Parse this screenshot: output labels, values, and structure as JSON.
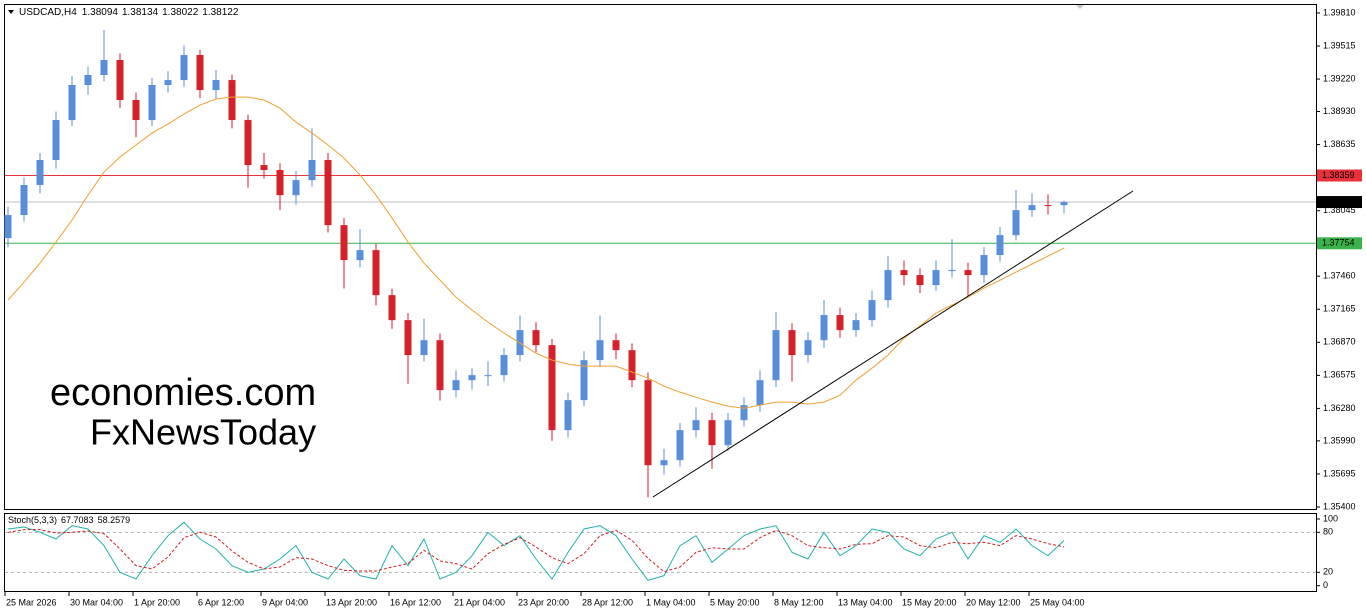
{
  "header": {
    "symbol": "USDCAD,H4",
    "indicator": "Stoch(5,3,3)"
  },
  "watermark": {
    "brand": "economies.com",
    "sub": "FxNewsToday"
  },
  "chart_data": [
    {
      "type": "candlestick",
      "categories": [
        "25 Mar 2026",
        null,
        null,
        null,
        "30 Mar 04:00",
        null,
        null,
        null,
        "1 Apr 20:00",
        null,
        null,
        null,
        "6 Apr 12:00",
        null,
        null,
        null,
        "9 Apr 04:00",
        null,
        null,
        null,
        "13 Apr 20:00",
        null,
        null,
        null,
        "16 Apr 12:00",
        null,
        null,
        null,
        "21 Apr 04:00",
        null,
        null,
        null,
        "23 Apr 20:00",
        null,
        null,
        null,
        "28 Apr 12:00",
        null,
        null,
        null,
        "1 May 04:00",
        null,
        null,
        null,
        "5 May 20:00",
        null,
        null,
        null,
        "8 May 12:00",
        null,
        null,
        null,
        "13 May 04:00",
        null,
        null,
        null,
        "15 May 20:00",
        null,
        null,
        null,
        "20 May 12:00",
        null,
        null,
        null,
        "25 May 04:00",
        null,
        null
      ],
      "open": [
        1.378,
        1.38006,
        1.38274,
        1.38497,
        1.38854,
        1.39167,
        1.39256,
        1.3939,
        1.39033,
        1.38854,
        1.39167,
        1.39211,
        1.39435,
        1.39122,
        1.39211,
        1.38854,
        1.38452,
        1.38408,
        1.38184,
        1.38318,
        1.38497,
        1.37916,
        1.37604,
        1.37693,
        1.37291,
        1.37068,
        1.36756,
        1.36889,
        1.36443,
        1.36532,
        1.36577,
        1.36577,
        1.36756,
        1.36979,
        1.36845,
        1.36086,
        1.36354,
        1.36711,
        1.36889,
        1.368,
        1.36532,
        1.35773,
        1.35818,
        1.36086,
        1.36175,
        1.35952,
        1.36175,
        1.36309,
        1.36532,
        1.36979,
        1.36756,
        1.36889,
        1.37113,
        1.36979,
        1.37068,
        1.37247,
        1.37515,
        1.3747,
        1.37381,
        1.37515,
        1.37515,
        1.3747,
        1.37649,
        1.37827,
        1.3805,
        1.38095,
        1.38094
      ],
      "high": [
        1.3808,
        1.3834,
        1.3856,
        1.3893,
        1.3925,
        1.3933,
        1.39658,
        1.3945,
        1.391,
        1.3923,
        1.3929,
        1.3952,
        1.3948,
        1.393,
        1.3926,
        1.389,
        1.3856,
        1.3847,
        1.384,
        1.3878,
        1.3856,
        1.3798,
        1.3788,
        1.3775,
        1.3735,
        1.3713,
        1.3708,
        1.3695,
        1.3662,
        1.3664,
        1.367,
        1.3682,
        1.3711,
        1.3705,
        1.369,
        1.3642,
        1.3679,
        1.3711,
        1.3695,
        1.3686,
        1.366,
        1.3592,
        1.3615,
        1.3629,
        1.3624,
        1.3624,
        1.3638,
        1.3662,
        1.3714,
        1.3704,
        1.3696,
        1.3725,
        1.3718,
        1.3713,
        1.3733,
        1.3764,
        1.376,
        1.3753,
        1.376,
        1.3779,
        1.3758,
        1.3772,
        1.379,
        1.3823,
        1.382,
        1.3819,
        1.38134
      ],
      "low": [
        1.3772,
        1.3795,
        1.382,
        1.3842,
        1.388,
        1.3908,
        1.392,
        1.3896,
        1.387,
        1.388,
        1.391,
        1.3915,
        1.3905,
        1.3904,
        1.3878,
        1.3825,
        1.3833,
        1.3805,
        1.381,
        1.3826,
        1.3785,
        1.3735,
        1.3754,
        1.372,
        1.3699,
        1.365,
        1.367,
        1.3635,
        1.3638,
        1.3645,
        1.3648,
        1.3652,
        1.367,
        1.3678,
        1.3599,
        1.3602,
        1.363,
        1.3665,
        1.3672,
        1.3647,
        1.35487,
        1.3569,
        1.3576,
        1.3602,
        1.3574,
        1.359,
        1.3612,
        1.3625,
        1.3647,
        1.3652,
        1.3669,
        1.3682,
        1.3691,
        1.3692,
        1.3701,
        1.3718,
        1.3738,
        1.3731,
        1.3733,
        1.3745,
        1.3728,
        1.374,
        1.3759,
        1.3778,
        1.3799,
        1.3801,
        1.38022
      ],
      "close": [
        1.38006,
        1.38274,
        1.38497,
        1.38854,
        1.39167,
        1.39256,
        1.3939,
        1.39033,
        1.38854,
        1.39167,
        1.39211,
        1.39435,
        1.39122,
        1.39211,
        1.38854,
        1.38452,
        1.38408,
        1.38184,
        1.38318,
        1.38497,
        1.37916,
        1.37604,
        1.37693,
        1.37291,
        1.37068,
        1.36756,
        1.36889,
        1.36443,
        1.36532,
        1.36577,
        1.36577,
        1.36756,
        1.36979,
        1.36845,
        1.36086,
        1.36354,
        1.36711,
        1.36889,
        1.368,
        1.36532,
        1.35773,
        1.35818,
        1.36086,
        1.36175,
        1.35952,
        1.36175,
        1.36309,
        1.36532,
        1.36979,
        1.36756,
        1.36889,
        1.37113,
        1.36979,
        1.37068,
        1.37247,
        1.37515,
        1.3747,
        1.37381,
        1.37515,
        1.37515,
        1.3747,
        1.37649,
        1.37827,
        1.3805,
        1.38095,
        1.38094,
        1.38122
      ],
      "up_color": "#5b8ed8",
      "down_color": "#d4212b",
      "ma": {
        "color": "#f0a030",
        "values": [
          1.37247,
          1.37407,
          1.37577,
          1.37765,
          1.37961,
          1.38184,
          1.3839,
          1.38524,
          1.38631,
          1.38738,
          1.38818,
          1.38908,
          1.38988,
          1.39042,
          1.39059,
          1.39059,
          1.39033,
          1.38961,
          1.38836,
          1.38738,
          1.38631,
          1.38515,
          1.38363,
          1.38184,
          1.37979,
          1.37765,
          1.37577,
          1.37425,
          1.37273,
          1.37157,
          1.3705,
          1.36952,
          1.36863,
          1.36773,
          1.36711,
          1.36675,
          1.36657,
          1.36657,
          1.36657,
          1.36604,
          1.3655,
          1.36479,
          1.36425,
          1.3638,
          1.36336,
          1.363,
          1.36282,
          1.36309,
          1.36336,
          1.36336,
          1.36318,
          1.36336,
          1.36398,
          1.36532,
          1.36639,
          1.36756,
          1.36907,
          1.37015,
          1.37131,
          1.37202,
          1.37273,
          1.37354,
          1.37425,
          1.37497,
          1.37568,
          1.3764,
          1.37711
        ]
      },
      "levels": [
        {
          "value": 1.38359,
          "color": "#e8313a"
        },
        {
          "value": 1.37754,
          "color": "#3bb34a"
        }
      ],
      "price_line_color": "#c0c0c0",
      "ylim": [
        1.35391,
        1.39881
      ],
      "yticks": [
        {
          "value": 1.3981,
          "label": "1.39810"
        },
        1.39515,
        {
          "value": 1.3922,
          "label": "1.39220"
        },
        {
          "value": 1.3893,
          "label": "1.38930"
        },
        1.38635,
        1.38045,
        {
          "value": 1.3746,
          "label": "1.37460"
        },
        1.37165,
        {
          "value": 1.3687,
          "label": "1.36870"
        },
        1.36575,
        {
          "value": 1.3628,
          "label": "1.36280"
        },
        {
          "value": 1.3599,
          "label": "1.35990"
        },
        1.35695,
        {
          "value": 1.354,
          "label": "1.35400"
        }
      ]
    },
    {
      "type": "line",
      "series": [
        {
          "color": "#20b2aa",
          "values": [
            85,
            88,
            80,
            70,
            90,
            85,
            60,
            20,
            10,
            45,
            75,
            95,
            70,
            55,
            30,
            20,
            25,
            40,
            60,
            20,
            10,
            40,
            15,
            10,
            60,
            30,
            70,
            10,
            20,
            45,
            80,
            60,
            75,
            40,
            10,
            50,
            85,
            90,
            75,
            40,
            8,
            15,
            60,
            75,
            35,
            55,
            75,
            85,
            90,
            50,
            40,
            80,
            45,
            60,
            85,
            80,
            55,
            45,
            70,
            80,
            40,
            75,
            65,
            85,
            60,
            45,
            67.7083
          ]
        },
        {
          "color": "#d02020",
          "values": [
            80,
            84,
            84,
            79,
            80,
            82,
            78,
            55,
            30,
            25,
            43,
            72,
            80,
            73,
            52,
            35,
            25,
            28,
            42,
            40,
            30,
            23,
            22,
            22,
            28,
            33,
            53,
            37,
            33,
            25,
            48,
            62,
            72,
            58,
            42,
            33,
            48,
            75,
            83,
            68,
            41,
            21,
            28,
            50,
            57,
            55,
            55,
            72,
            83,
            75,
            60,
            57,
            55,
            62,
            63,
            75,
            73,
            60,
            57,
            65,
            63,
            65,
            60,
            75,
            70,
            63,
            58.2579
          ]
        }
      ],
      "ylim": [
        -8,
        109
      ],
      "yticks": [
        100,
        80,
        20,
        0
      ]
    }
  ]
}
